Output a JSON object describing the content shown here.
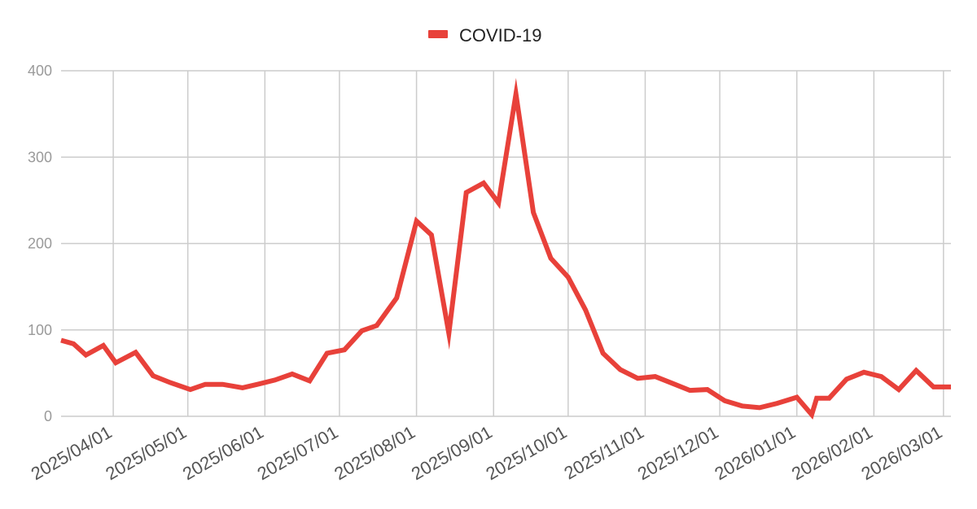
{
  "colors": {
    "line": "#e8413a",
    "grid": "#cccccc",
    "background": "#ffffff"
  },
  "chart_data": {
    "type": "line",
    "title": "",
    "xlabel": "",
    "ylabel": "",
    "legend_position": "top-center",
    "grid": true,
    "ylim": [
      0,
      400
    ],
    "xlim": [
      "2025-03-11",
      "2026-03-04"
    ],
    "y_ticks": [
      "0",
      "100",
      "200",
      "300",
      "400"
    ],
    "x_ticks": [
      {
        "date": "2025-04-01",
        "label": "2025/04/01"
      },
      {
        "date": "2025-05-01",
        "label": "2025/05/01"
      },
      {
        "date": "2025-06-01",
        "label": "2025/06/01"
      },
      {
        "date": "2025-07-01",
        "label": "2025/07/01"
      },
      {
        "date": "2025-08-01",
        "label": "2025/08/01"
      },
      {
        "date": "2025-09-01",
        "label": "2025/09/01"
      },
      {
        "date": "2025-10-01",
        "label": "2025/10/01"
      },
      {
        "date": "2025-11-01",
        "label": "2025/11/01"
      },
      {
        "date": "2025-12-01",
        "label": "2025/12/01"
      },
      {
        "date": "2026-01-01",
        "label": "2026/01/01"
      },
      {
        "date": "2026-02-01",
        "label": "2026/02/01"
      },
      {
        "date": "2026-03-01",
        "label": "2026/03/01"
      }
    ],
    "series": [
      {
        "name": "COVID-19",
        "x": [
          "2025-03-11",
          "2025-03-16",
          "2025-03-21",
          "2025-03-28",
          "2025-04-02",
          "2025-04-10",
          "2025-04-17",
          "2025-04-24",
          "2025-05-02",
          "2025-05-08",
          "2025-05-15",
          "2025-05-23",
          "2025-05-29",
          "2025-06-05",
          "2025-06-12",
          "2025-06-19",
          "2025-06-26",
          "2025-07-03",
          "2025-07-10",
          "2025-07-16",
          "2025-07-24",
          "2025-08-01",
          "2025-08-07",
          "2025-08-14",
          "2025-08-21",
          "2025-08-28",
          "2025-09-03",
          "2025-09-10",
          "2025-09-17",
          "2025-09-24",
          "2025-10-01",
          "2025-10-08",
          "2025-10-15",
          "2025-10-22",
          "2025-10-29",
          "2025-11-05",
          "2025-11-12",
          "2025-11-19",
          "2025-11-26",
          "2025-12-03",
          "2025-12-10",
          "2025-12-17",
          "2025-12-24",
          "2026-01-01",
          "2026-01-07",
          "2026-01-09",
          "2026-01-14",
          "2026-01-21",
          "2026-01-28",
          "2026-02-04",
          "2026-02-11",
          "2026-02-18",
          "2026-02-25",
          "2026-03-04"
        ],
        "values": [
          88,
          84,
          71,
          82,
          62,
          74,
          47,
          39,
          31,
          37,
          37,
          33,
          37,
          42,
          49,
          41,
          73,
          77,
          99,
          105,
          137,
          226,
          210,
          96,
          259,
          270,
          247,
          373,
          236,
          183,
          161,
          123,
          73,
          54,
          44,
          46,
          38,
          30,
          31,
          18,
          12,
          10,
          15,
          22,
          2,
          21,
          21,
          43,
          51,
          46,
          31,
          53,
          34,
          34
        ]
      }
    ]
  }
}
